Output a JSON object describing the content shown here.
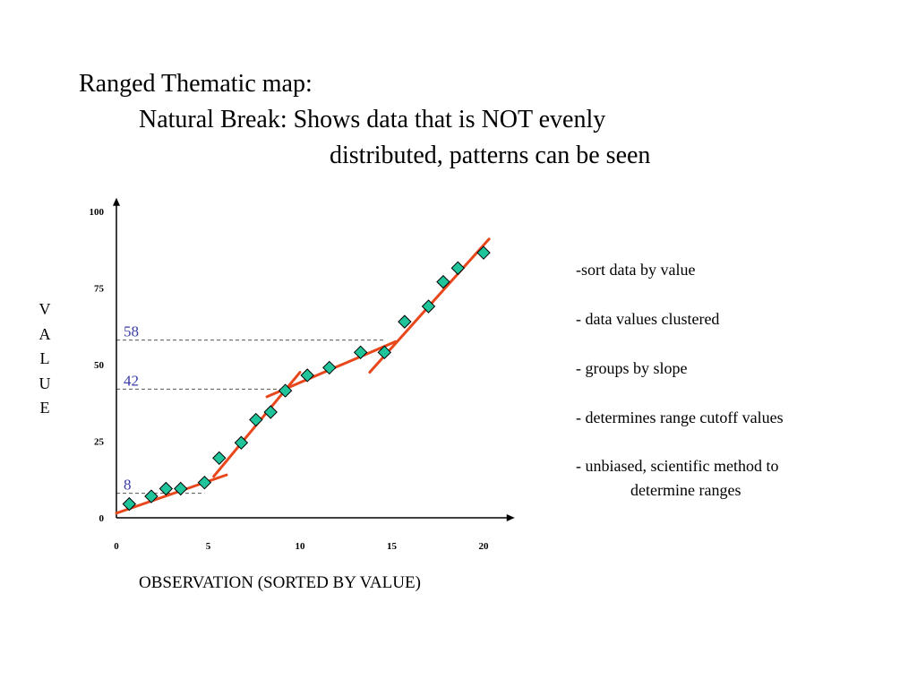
{
  "title": {
    "line1": "Ranged Thematic map:",
    "line2": "Natural Break:  Shows data that is NOT evenly",
    "line3": "distributed, patterns can be seen"
  },
  "notes": [
    {
      "text": "-sort data by value"
    },
    {
      "text": "- data values clustered"
    },
    {
      "text": "- groups by slope"
    },
    {
      "text": "- determines range cutoff  values"
    },
    {
      "text": "- unbiased, scientific method to",
      "cont": "determine ranges"
    }
  ],
  "chart_data": {
    "type": "scatter",
    "xlabel": "OBSERVATION (SORTED BY VALUE)",
    "ylabel_letters": [
      "V",
      "A",
      "L",
      "U",
      "E"
    ],
    "xlim": [
      0,
      21.5
    ],
    "ylim": [
      0,
      103
    ],
    "x_ticks": [
      0,
      5,
      10,
      15,
      20
    ],
    "y_ticks": [
      0,
      25,
      50,
      75,
      100
    ],
    "points": [
      {
        "x": 0.7,
        "y": 4.5
      },
      {
        "x": 1.9,
        "y": 7
      },
      {
        "x": 2.7,
        "y": 9.5
      },
      {
        "x": 3.5,
        "y": 9.5
      },
      {
        "x": 4.8,
        "y": 11.5
      },
      {
        "x": 5.6,
        "y": 19.5
      },
      {
        "x": 6.8,
        "y": 24.5
      },
      {
        "x": 7.6,
        "y": 32
      },
      {
        "x": 8.4,
        "y": 34.5
      },
      {
        "x": 9.2,
        "y": 41.5
      },
      {
        "x": 10.4,
        "y": 46.5
      },
      {
        "x": 11.6,
        "y": 49
      },
      {
        "x": 13.3,
        "y": 54
      },
      {
        "x": 14.6,
        "y": 54
      },
      {
        "x": 15.7,
        "y": 64
      },
      {
        "x": 17.0,
        "y": 69
      },
      {
        "x": 17.8,
        "y": 77
      },
      {
        "x": 18.6,
        "y": 81.5
      },
      {
        "x": 20.0,
        "y": 86.5
      }
    ],
    "trend_lines": [
      {
        "x1": 0,
        "y1": 1.5,
        "x2": 6.0,
        "y2": 14
      },
      {
        "x1": 5.3,
        "y1": 13.5,
        "x2": 10.0,
        "y2": 47.5
      },
      {
        "x1": 8.2,
        "y1": 39.5,
        "x2": 15.2,
        "y2": 57.5
      },
      {
        "x1": 13.8,
        "y1": 47.5,
        "x2": 20.3,
        "y2": 91
      }
    ],
    "breaks": [
      {
        "value": 58,
        "label": "58",
        "x_end": 14.6
      },
      {
        "value": 42,
        "label": "42",
        "x_end": 9.4
      },
      {
        "value": 8,
        "label": "8",
        "x_end": 4.8
      }
    ],
    "colors": {
      "marker_fill": "#1fc49a",
      "marker_stroke": "#000000",
      "trend": "#e8471c",
      "break_label": "#3a3aa8",
      "break_line": "#555555"
    }
  }
}
